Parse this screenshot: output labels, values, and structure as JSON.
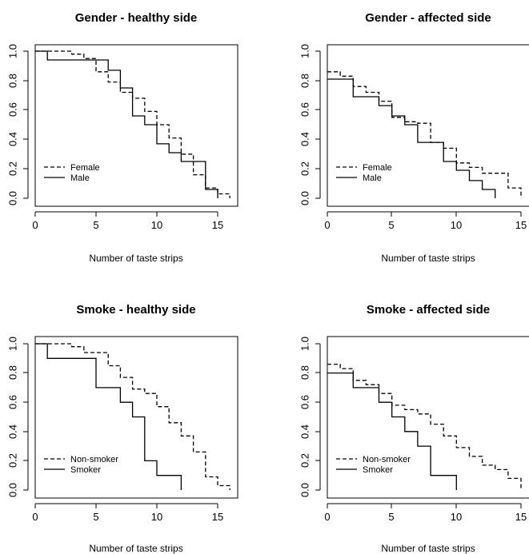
{
  "chart_data": [
    {
      "type": "line",
      "title": "Gender - healthy side",
      "xlabel": "Number of taste strips",
      "ylabel": "",
      "xlim": [
        0,
        16
      ],
      "ylim": [
        0,
        1
      ],
      "xticks": [
        "0",
        "5",
        "10",
        "15"
      ],
      "yticks": [
        "0.0",
        "0.2",
        "0.4",
        "0.6",
        "0.8",
        "1.0"
      ],
      "legend": "left",
      "series": [
        {
          "name": "Female",
          "line_style": "dashed",
          "x": [
            0,
            3,
            4,
            5,
            6,
            7,
            8,
            9,
            10,
            11,
            12,
            13,
            14,
            15,
            16
          ],
          "y": [
            1.0,
            0.98,
            0.95,
            0.86,
            0.79,
            0.72,
            0.68,
            0.59,
            0.5,
            0.41,
            0.3,
            0.16,
            0.07,
            0.03,
            0.0
          ]
        },
        {
          "name": "Male",
          "line_style": "solid",
          "x": [
            0,
            1,
            6,
            7,
            8,
            9,
            10,
            11,
            12,
            13,
            14,
            15
          ],
          "y": [
            1.0,
            0.94,
            0.87,
            0.75,
            0.56,
            0.5,
            0.37,
            0.31,
            0.25,
            0.25,
            0.06,
            0.0
          ]
        }
      ]
    },
    {
      "type": "line",
      "title": "Gender - affected side",
      "xlabel": "Number of taste strips",
      "ylabel": "",
      "xlim": [
        0,
        15
      ],
      "ylim": [
        0,
        1
      ],
      "xticks": [
        "0",
        "5",
        "10",
        "15"
      ],
      "yticks": [
        "0.0",
        "0.2",
        "0.4",
        "0.6",
        "0.8",
        "1.0"
      ],
      "legend": "left",
      "series": [
        {
          "name": "Female",
          "line_style": "dashed",
          "x": [
            0,
            1,
            2,
            3,
            4,
            5,
            6,
            7,
            8,
            9,
            10,
            11,
            12,
            14,
            15
          ],
          "y": [
            0.86,
            0.83,
            0.76,
            0.72,
            0.66,
            0.55,
            0.52,
            0.51,
            0.38,
            0.34,
            0.24,
            0.21,
            0.17,
            0.07,
            0.0
          ]
        },
        {
          "name": "Male",
          "line_style": "solid",
          "x": [
            0,
            2,
            4,
            5,
            6,
            7,
            9,
            10,
            11,
            12,
            13
          ],
          "y": [
            0.81,
            0.69,
            0.63,
            0.56,
            0.5,
            0.38,
            0.25,
            0.19,
            0.12,
            0.06,
            0.0
          ]
        }
      ]
    },
    {
      "type": "line",
      "title": "Smoke - healthy side",
      "xlabel": "Number of taste strips",
      "ylabel": "",
      "xlim": [
        0,
        16
      ],
      "ylim": [
        0,
        1
      ],
      "xticks": [
        "0",
        "5",
        "10",
        "15"
      ],
      "yticks": [
        "0.0",
        "0.2",
        "0.4",
        "0.6",
        "0.8",
        "1.0"
      ],
      "legend": "left",
      "series": [
        {
          "name": "Non-smoker",
          "line_style": "dashed",
          "x": [
            0,
            3,
            4,
            6,
            7,
            8,
            9,
            10,
            11,
            12,
            13,
            14,
            15,
            16
          ],
          "y": [
            1.0,
            0.98,
            0.94,
            0.85,
            0.77,
            0.69,
            0.66,
            0.57,
            0.46,
            0.37,
            0.26,
            0.09,
            0.03,
            0.0
          ]
        },
        {
          "name": "Smoker",
          "line_style": "solid",
          "x": [
            0,
            1,
            5,
            7,
            8,
            9,
            10,
            12
          ],
          "y": [
            1.0,
            0.9,
            0.7,
            0.6,
            0.5,
            0.2,
            0.1,
            0.0
          ]
        }
      ]
    },
    {
      "type": "line",
      "title": "Smoke - affected side",
      "xlabel": "Number of taste strips",
      "ylabel": "",
      "xlim": [
        0,
        15
      ],
      "ylim": [
        0,
        1
      ],
      "xticks": [
        "0",
        "5",
        "10",
        "15"
      ],
      "yticks": [
        "0.0",
        "0.2",
        "0.4",
        "0.6",
        "0.8",
        "1.0"
      ],
      "legend": "left",
      "series": [
        {
          "name": "Non-smoker",
          "line_style": "dashed",
          "x": [
            0,
            1,
            2,
            3,
            4,
            5,
            6,
            7,
            8,
            9,
            10,
            11,
            12,
            13,
            14,
            15
          ],
          "y": [
            0.86,
            0.83,
            0.75,
            0.72,
            0.66,
            0.58,
            0.55,
            0.52,
            0.45,
            0.37,
            0.29,
            0.23,
            0.17,
            0.14,
            0.08,
            0.0
          ]
        },
        {
          "name": "Smoker",
          "line_style": "solid",
          "x": [
            0,
            2,
            4,
            5,
            6,
            7,
            8,
            10
          ],
          "y": [
            0.8,
            0.7,
            0.6,
            0.5,
            0.4,
            0.3,
            0.1,
            0.0
          ]
        }
      ]
    }
  ]
}
